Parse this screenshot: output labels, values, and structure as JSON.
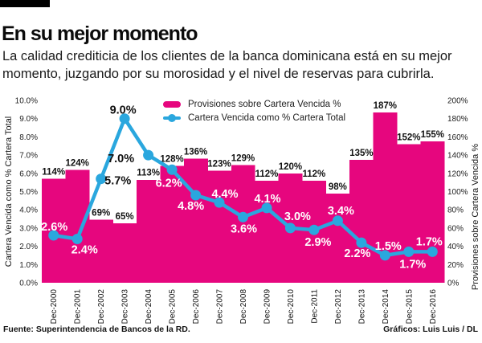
{
  "header": {
    "title": "En su mejor momento",
    "subtitle": "La calidad crediticia de los clientes de la banca dominicana está en su mejor momento, juzgando por su morosidad y el nivel de reservas para cubrirla."
  },
  "legend": {
    "bars": "Provisiones sobre Cartera Vencida %",
    "line": "Cartera Vencida como % Cartera Total"
  },
  "footer": {
    "source": "Fuente:  Superintendencia de Bancos de la RD.",
    "credit": "Gráficos: Luis Luis / DL"
  },
  "colors": {
    "bar": "#e6067e",
    "line": "#2aa7de",
    "bar_label": "#111111",
    "line_label_light": "#ffffff",
    "line_label_dark": "#111111",
    "tick": "#222222"
  },
  "chart_data": {
    "type": "bar+line",
    "categories": [
      "Dec-2000",
      "Dec-2001",
      "Dec-2002",
      "Dec-2003",
      "Dec-2004",
      "Dec-2005",
      "Dec-2006",
      "Dec-2007",
      "Dec-2008",
      "Dec-2009",
      "Dec-2010",
      "Dec-2011",
      "Dec-2012",
      "Dec-2013",
      "Dec-2014",
      "Dec-2015",
      "Dec-2016"
    ],
    "series": [
      {
        "name": "Provisiones sobre Cartera Vencida %",
        "type": "bar",
        "axis": "right",
        "values": [
          114,
          124,
          69,
          65,
          113,
          128,
          136,
          123,
          129,
          112,
          120,
          112,
          98,
          135,
          187,
          152,
          155
        ],
        "labels": [
          "114%",
          "124%",
          "69%",
          "65%",
          "113%",
          "128%",
          "136%",
          "123%",
          "129%",
          "112%",
          "120%",
          "112%",
          "98%",
          "135%",
          "187%",
          "152%",
          "155%"
        ]
      },
      {
        "name": "Cartera Vencida como % Cartera Total",
        "type": "line",
        "axis": "left",
        "values": [
          2.6,
          2.4,
          5.7,
          9.0,
          7.0,
          6.2,
          4.8,
          4.4,
          3.6,
          4.1,
          3.0,
          2.9,
          3.4,
          2.2,
          1.5,
          1.7,
          1.7
        ],
        "labels": [
          "2.6%",
          "2.4%",
          "5.7%",
          "9.0%",
          "7.0%",
          "6.2%",
          "4.8%",
          "4.4%",
          "3.6%",
          "4.1%",
          "3.0%",
          "2.9%",
          "3.4%",
          "2.2%",
          "1.5%",
          "1.7%",
          "1.7%"
        ]
      }
    ],
    "left_axis": {
      "label": "Cartera Vencida como % Cartera Total",
      "min": 0,
      "max": 10,
      "step": 1
    },
    "right_axis": {
      "label": "Provisiones sobre Cartera Vencida %",
      "min": 0,
      "max": 200,
      "step": 20
    },
    "grid": false,
    "legend_position": "top-center"
  }
}
